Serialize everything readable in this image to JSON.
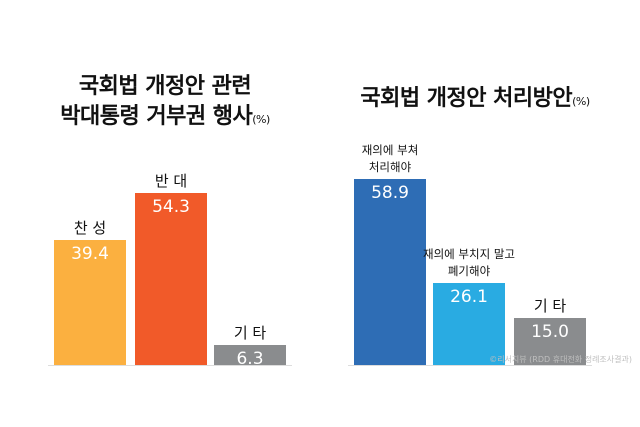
{
  "chart_data": [
    {
      "type": "bar",
      "title": "국회법 개정안 관련\n박대통령 거부권 행사",
      "unit": "(%)",
      "categories": [
        "찬 성",
        "반 대",
        "기 타"
      ],
      "values": [
        39.4,
        54.3,
        6.3
      ],
      "value_labels": [
        "39.4",
        "54.3",
        "6.3"
      ],
      "colors": [
        "#fbb040",
        "#f15a29",
        "#8a8c8e"
      ]
    },
    {
      "type": "bar",
      "title": "국회법 개정안 처리방안",
      "unit": "(%)",
      "categories": [
        "재의에 부쳐\n처리해야",
        "재의에 부치지 말고\n폐기해야",
        "기 타"
      ],
      "values": [
        58.9,
        26.1,
        15.0
      ],
      "value_labels": [
        "58.9",
        "26.1",
        "15.0"
      ],
      "colors": [
        "#2e6db5",
        "#29abe2",
        "#8a8c8e"
      ]
    }
  ],
  "source": "©리서치뷰 (RDD 휴대전화 정례조사결과)"
}
